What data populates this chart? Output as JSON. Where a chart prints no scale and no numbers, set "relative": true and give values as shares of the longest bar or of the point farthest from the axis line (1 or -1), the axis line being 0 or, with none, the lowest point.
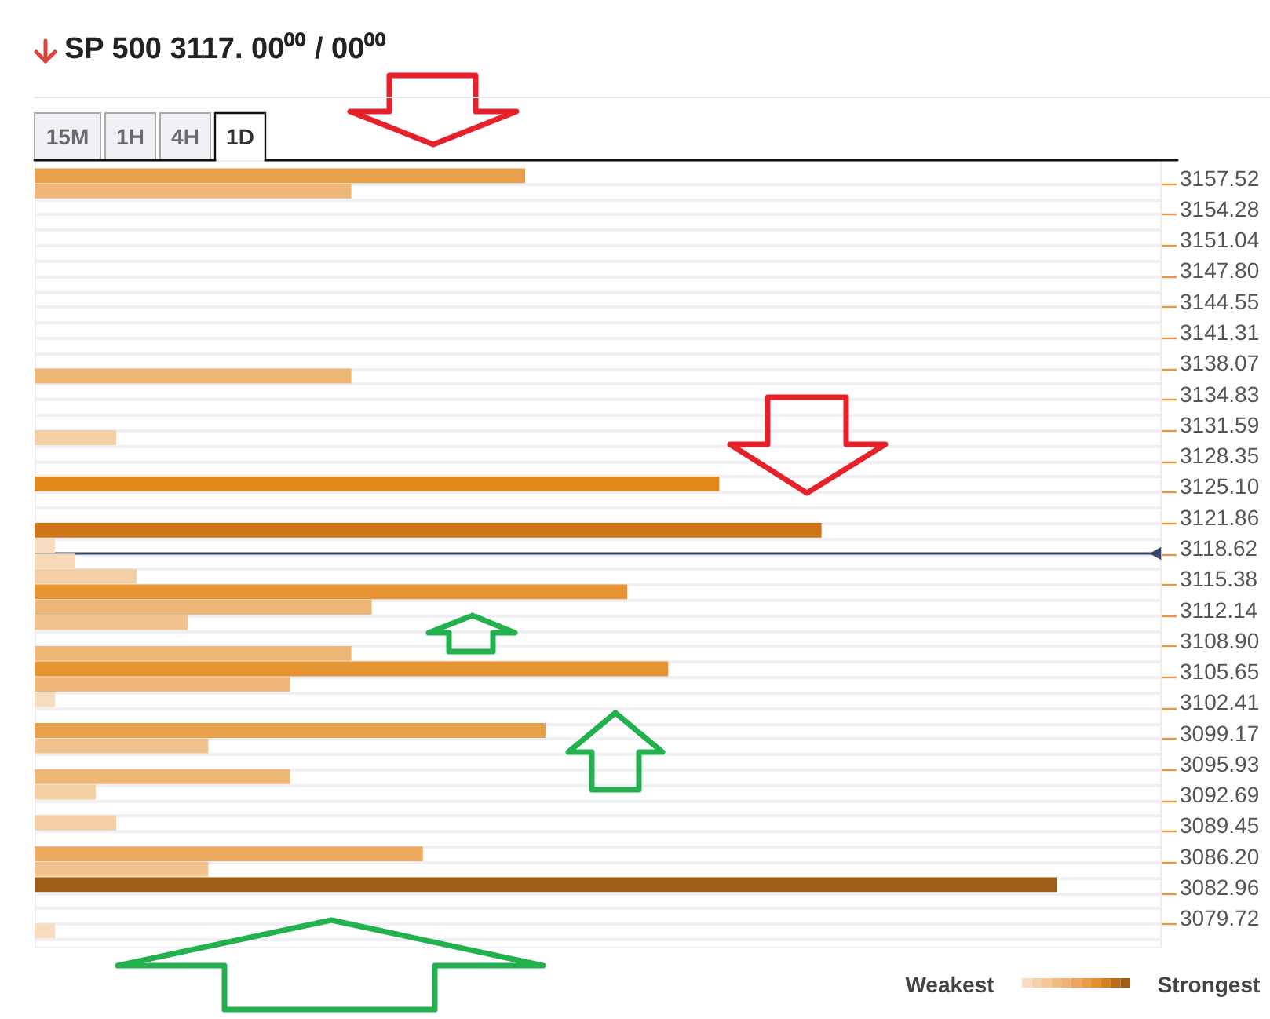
{
  "chart_data": {
    "type": "bar",
    "orientation": "horizontal",
    "relative": true,
    "title": "SP 500 3117. 00⁰⁰ / 00⁰⁰",
    "x": [
      3158.33,
      3156.71,
      3137.27,
      3130.79,
      3125.93,
      3121.07,
      3119.45,
      3117.83,
      3116.21,
      3114.59,
      3112.97,
      3111.35,
      3108.11,
      3106.49,
      3104.87,
      3103.25,
      3100.01,
      3098.39,
      3095.15,
      3093.53,
      3090.29,
      3087.05,
      3085.43,
      3083.81,
      3078.95
    ],
    "values": [
      0.48,
      0.31,
      0.31,
      0.08,
      0.67,
      0.77,
      0.02,
      0.04,
      0.1,
      0.58,
      0.33,
      0.15,
      0.31,
      0.62,
      0.25,
      0.02,
      0.5,
      0.17,
      0.25,
      0.06,
      0.08,
      0.38,
      0.17,
      1,
      0.02
    ],
    "colors": [
      "#e9a04c",
      "#efb777",
      "#efb777",
      "#f4cfa6",
      "#e3881b",
      "#ce7617",
      "#f8dcbf",
      "#f7d8b6",
      "#f4cea5",
      "#e79433",
      "#eeb777",
      "#f1c48f",
      "#efb777",
      "#e79433",
      "#efb777",
      "#f8dcbf",
      "#e9a04c",
      "#f2c28e",
      "#efb777",
      "#f4cfa6",
      "#f4cfa6",
      "#edab62",
      "#f2c28e",
      "#9e5c14",
      "#f8dcbf"
    ],
    "ylim": [
      3078.1,
      3159.14
    ],
    "yticks": [
      3157.52,
      {
        "value": 3155.9,
        "label": null
      },
      3154.28,
      {
        "value": 3152.66,
        "label": null
      },
      3151.04,
      {
        "value": 3149.42,
        "label": null
      },
      {
        "value": 3147.8,
        "label": "3147.80"
      },
      {
        "value": 3146.18,
        "label": null
      },
      3144.55,
      {
        "value": 3142.93,
        "label": null
      },
      3141.31,
      {
        "value": 3139.69,
        "label": null
      },
      3138.07,
      {
        "value": 3136.45,
        "label": null
      },
      3134.83,
      {
        "value": 3133.21,
        "label": null
      },
      3131.59,
      {
        "value": 3129.97,
        "label": null
      },
      3128.35,
      {
        "value": 3126.73,
        "label": null
      },
      {
        "value": 3125.1,
        "label": "3125.10"
      },
      {
        "value": 3123.48,
        "label": null
      },
      3121.86,
      {
        "value": 3120.24,
        "label": null
      },
      3118.62,
      {
        "value": 3117.0,
        "label": null
      },
      3115.38,
      {
        "value": 3113.76,
        "label": null
      },
      3112.14,
      {
        "value": 3110.52,
        "label": null
      },
      {
        "value": 3108.9,
        "label": "3108.90"
      },
      {
        "value": 3107.28,
        "label": null
      },
      3105.65,
      {
        "value": 3104.03,
        "label": null
      },
      3102.41,
      {
        "value": 3100.79,
        "label": null
      },
      3099.17,
      {
        "value": 3097.55,
        "label": null
      },
      3095.93,
      {
        "value": 3094.31,
        "label": null
      },
      3092.69,
      {
        "value": 3091.07,
        "label": null
      },
      3089.45,
      {
        "value": 3087.83,
        "label": null
      },
      {
        "value": 3086.2,
        "label": "3086.20"
      },
      {
        "value": 3084.58,
        "label": null
      },
      3082.96,
      {
        "value": 3081.34,
        "label": null
      },
      3079.72,
      {
        "value": 3078.1,
        "label": null
      }
    ],
    "grid": "y",
    "ref_lines": [
      {
        "axis": "y",
        "value": 3118.62,
        "color": "#34466e"
      }
    ],
    "annotations": [
      "15M",
      "1H",
      "4H",
      "1D",
      "Weakest",
      "Strongest"
    ]
  }
}
